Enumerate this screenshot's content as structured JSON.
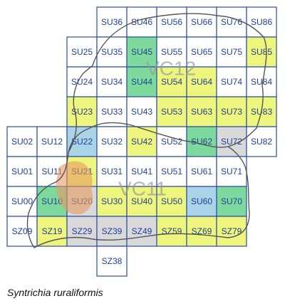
{
  "map": {
    "cells": [
      {
        "label": "SU36",
        "color": "#ffffff"
      },
      {
        "label": "SU46",
        "color": "#ffffff"
      },
      {
        "label": "SU56",
        "color": "#ffffff"
      },
      {
        "label": "SU66",
        "color": "#ffffff"
      },
      {
        "label": "SU76",
        "color": "#ffffff"
      },
      {
        "label": "SU86",
        "color": "#ffffff"
      },
      {
        "label": "SU25",
        "color": "#ffffff"
      },
      {
        "label": "SU35",
        "color": "#ffffff"
      },
      {
        "label": "SU45",
        "color": "#7ed99c"
      },
      {
        "label": "SU55",
        "color": "#ffffff"
      },
      {
        "label": "SU65",
        "color": "#ffffff"
      },
      {
        "label": "SU75",
        "color": "#ffffff"
      },
      {
        "label": "SU85",
        "color": "#eef57c"
      },
      {
        "label": "SU24",
        "color": "#ffffff"
      },
      {
        "label": "SU34",
        "color": "#ffffff"
      },
      {
        "label": "SU44",
        "color": "#7ed99c"
      },
      {
        "label": "SU54",
        "color": "#eef57c"
      },
      {
        "label": "SU64",
        "color": "#eef57c"
      },
      {
        "label": "SU74",
        "color": "#ffffff"
      },
      {
        "label": "SU84",
        "color": "#ffffff"
      },
      {
        "label": "SU23",
        "color": "#eef57c"
      },
      {
        "label": "SU33",
        "color": "#ffffff"
      },
      {
        "label": "SU43",
        "color": "#ffffff"
      },
      {
        "label": "SU53",
        "color": "#eef57c"
      },
      {
        "label": "SU63",
        "color": "#eef57c"
      },
      {
        "label": "SU73",
        "color": "#eef57c"
      },
      {
        "label": "SU83",
        "color": "#eef57c"
      },
      {
        "label": "SU02",
        "color": "#ffffff"
      },
      {
        "label": "SU12",
        "color": "#ffffff"
      },
      {
        "label": "SU22",
        "color": "#a9d3e6"
      },
      {
        "label": "SU32",
        "color": "#ffffff"
      },
      {
        "label": "SU42",
        "color": "#eef57c"
      },
      {
        "label": "SU52",
        "color": "#ffffff"
      },
      {
        "label": "SU62",
        "color": "#7ed99c"
      },
      {
        "label": "SU72",
        "color": "#d9d9d9"
      },
      {
        "label": "SU82",
        "color": "#ffffff"
      },
      {
        "label": "SU01",
        "color": "#ffffff"
      },
      {
        "label": "SU11",
        "color": "#ffffff"
      },
      {
        "label": "SU21",
        "color": "#eef57c"
      },
      {
        "label": "SU31",
        "color": "#ffffff"
      },
      {
        "label": "SU41",
        "color": "#ffffff"
      },
      {
        "label": "SU51",
        "color": "#ffffff"
      },
      {
        "label": "SU61",
        "color": "#ffffff"
      },
      {
        "label": "SU71",
        "color": "#ffffff"
      },
      {
        "label": "SU00",
        "color": "#ffffff"
      },
      {
        "label": "SU10",
        "color": "#7ed99c"
      },
      {
        "label": "SU20",
        "color": "#d9d9d9"
      },
      {
        "label": "SU30",
        "color": "#eef57c"
      },
      {
        "label": "SU40",
        "color": "#eef57c"
      },
      {
        "label": "SU50",
        "color": "#eef57c"
      },
      {
        "label": "SU60",
        "color": "#a9d3e6"
      },
      {
        "label": "SU70",
        "color": "#7ed99c"
      },
      {
        "label": "SZ09",
        "color": "#ffffff"
      },
      {
        "label": "SZ19",
        "color": "#eef57c"
      },
      {
        "label": "SZ29",
        "color": "#d9d9d9"
      },
      {
        "label": "SZ39",
        "color": "#d9d9d9"
      },
      {
        "label": "SZ49",
        "color": "#d9d9d9"
      },
      {
        "label": "SZ59",
        "color": "#eef57c"
      },
      {
        "label": "SZ69",
        "color": "#eef57c"
      },
      {
        "label": "SZ79",
        "color": "#eef57c"
      },
      {
        "label": "SZ38",
        "color": "#ffffff"
      }
    ],
    "regions": [
      "VC12",
      "VC11"
    ],
    "caption": "Syntrichia ruraliformis"
  }
}
